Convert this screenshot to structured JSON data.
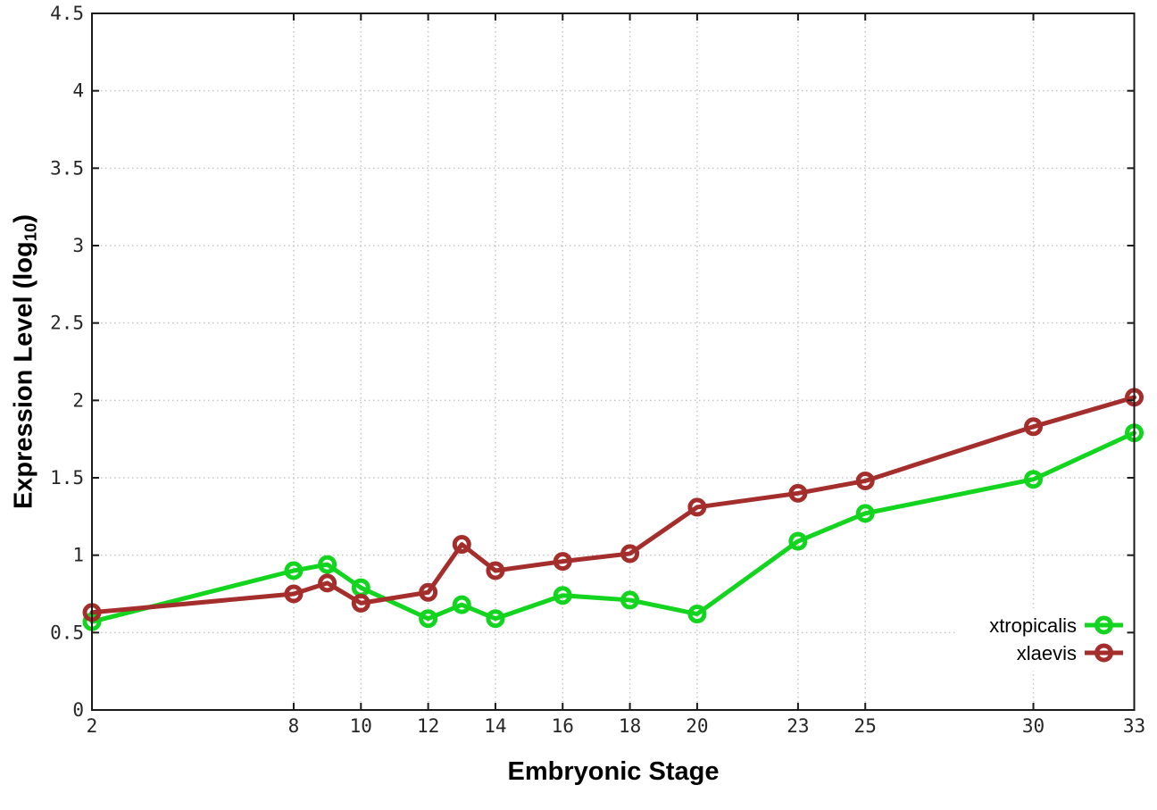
{
  "chart_data": {
    "type": "line",
    "title": "",
    "xlabel": "Embryonic Stage",
    "ylabel": {
      "prefix": "Expression Level (log",
      "subscript": "10",
      "suffix": ")"
    },
    "xlim": [
      2,
      33
    ],
    "ylim": [
      0,
      4.5
    ],
    "xticks": [
      2,
      8,
      10,
      12,
      14,
      16,
      18,
      20,
      23,
      25,
      30,
      33
    ],
    "yticks": [
      0,
      0.5,
      1,
      1.5,
      2,
      2.5,
      3,
      3.5,
      4,
      4.5
    ],
    "grid": true,
    "legend_position": "inside-bottom-right",
    "x": [
      2,
      8,
      9,
      10,
      12,
      13,
      14,
      16,
      18,
      20,
      23,
      25,
      30,
      33
    ],
    "series": [
      {
        "name": "xtropicalis",
        "color": "#13d41e",
        "marker": "open-circle",
        "values": [
          0.57,
          0.9,
          0.94,
          0.79,
          0.59,
          0.68,
          0.59,
          0.74,
          0.71,
          0.62,
          1.09,
          1.27,
          1.49,
          1.79
        ]
      },
      {
        "name": "xlaevis",
        "color": "#a42e2c",
        "marker": "open-circle",
        "values": [
          0.63,
          0.75,
          0.82,
          0.69,
          0.76,
          1.07,
          0.9,
          0.96,
          1.01,
          1.31,
          1.4,
          1.48,
          1.83,
          2.02
        ]
      }
    ]
  },
  "colors": {
    "grid": "#c6c6c6",
    "border": "#1a1a1a",
    "tick_text": "#262626",
    "background": "#ffffff"
  }
}
